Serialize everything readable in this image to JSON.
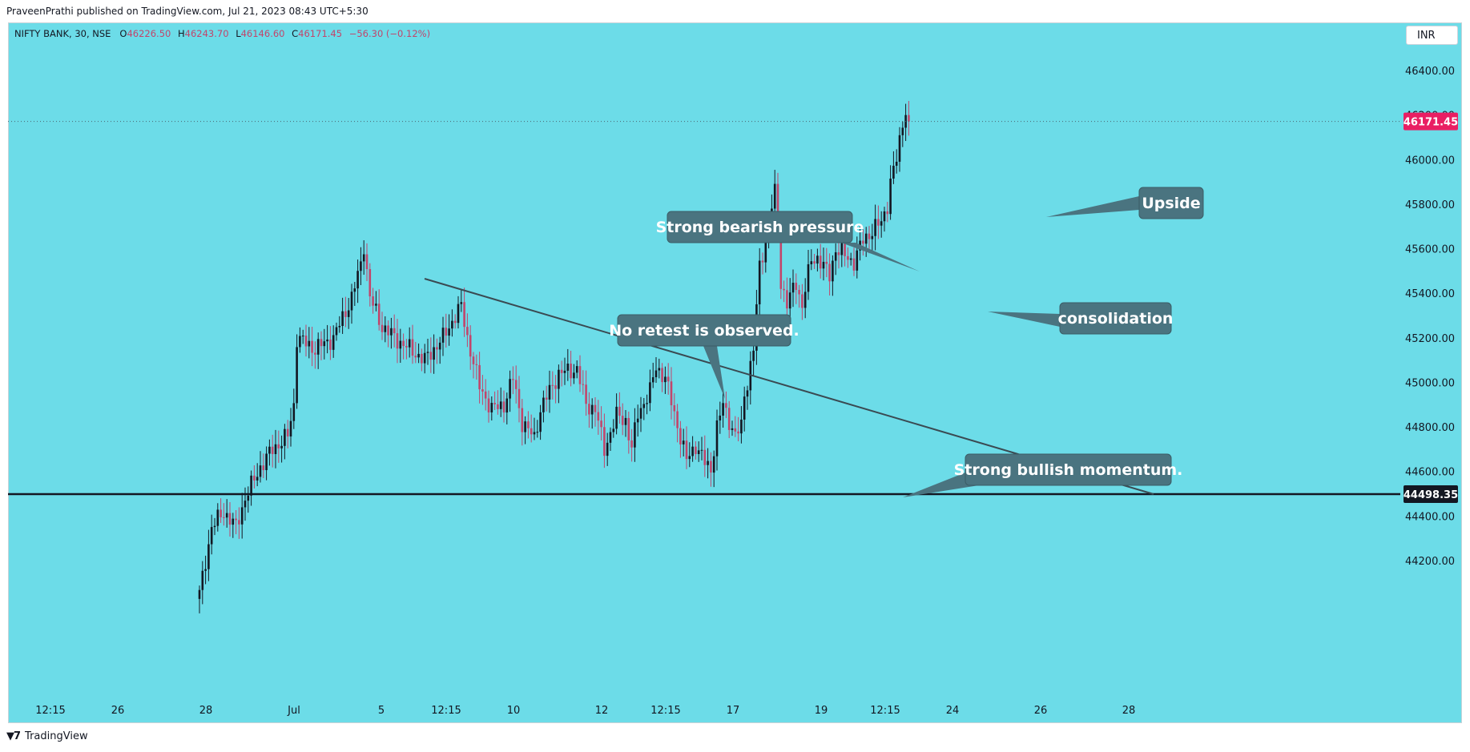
{
  "header": {
    "published_text": "PraveenPrathi published on TradingView.com, Jul 21, 2023 08:43 UTC+5:30"
  },
  "legend": {
    "symbol": "NIFTY BANK, 30, NSE",
    "open_label": "O",
    "open": "46226.50",
    "high_label": "H",
    "high": "46243.70",
    "low_label": "L",
    "low": "46146.60",
    "close_label": "C",
    "close": "46171.45",
    "change": "−56.30 (−0.12%)"
  },
  "currency": "INR",
  "footer": {
    "logo_icon": "tradingview-logo-icon",
    "brand": "TradingView"
  },
  "colors": {
    "background": "#6cdce8",
    "bull": "#131722",
    "bear": "#c2456b",
    "callout": "#4a7480",
    "last_price_tag": "#e91e63",
    "support_tag": "#131722"
  },
  "chart_data": {
    "type": "candlestick",
    "title": "NIFTY BANK, 30, NSE",
    "ylim": [
      44000,
      46600
    ],
    "y_ticks": [
      "46400.00",
      "46200.00",
      "46000.00",
      "45800.00",
      "45600.00",
      "45400.00",
      "45200.00",
      "45000.00",
      "44800.00",
      "44600.00",
      "44400.00",
      "44200.00"
    ],
    "x_ticks": [
      "12:15",
      "26",
      "28",
      "Jul",
      "5",
      "12:15",
      "10",
      "12",
      "12:15",
      "17",
      "19",
      "12:15",
      "24",
      "26",
      "28"
    ],
    "last_price": "46171.45",
    "support_level": "44498.35",
    "grid": false,
    "price_waypoints": [
      [
        0,
        44050
      ],
      [
        4,
        44350
      ],
      [
        8,
        44420
      ],
      [
        12,
        44350
      ],
      [
        15,
        44480
      ],
      [
        20,
        44620
      ],
      [
        24,
        44700
      ],
      [
        29,
        44760
      ],
      [
        31,
        44900
      ],
      [
        32,
        45200
      ],
      [
        38,
        45150
      ],
      [
        44,
        45200
      ],
      [
        50,
        45380
      ],
      [
        53,
        45530
      ],
      [
        54,
        45620
      ],
      [
        56,
        45380
      ],
      [
        60,
        45250
      ],
      [
        66,
        45180
      ],
      [
        74,
        45100
      ],
      [
        80,
        45200
      ],
      [
        84,
        45300
      ],
      [
        86,
        45340
      ],
      [
        88,
        45200
      ],
      [
        92,
        44980
      ],
      [
        96,
        44880
      ],
      [
        100,
        44900
      ],
      [
        103,
        45020
      ],
      [
        106,
        44820
      ],
      [
        110,
        44750
      ],
      [
        112,
        44880
      ],
      [
        118,
        45040
      ],
      [
        124,
        45060
      ],
      [
        127,
        44900
      ],
      [
        130,
        44880
      ],
      [
        133,
        44700
      ],
      [
        137,
        44850
      ],
      [
        140,
        44830
      ],
      [
        142,
        44700
      ],
      [
        144,
        44860
      ],
      [
        148,
        44960
      ],
      [
        150,
        45070
      ],
      [
        153,
        45020
      ],
      [
        156,
        44860
      ],
      [
        160,
        44650
      ],
      [
        163,
        44720
      ],
      [
        166,
        44640
      ],
      [
        168,
        44610
      ],
      [
        170,
        44800
      ],
      [
        172,
        44900
      ],
      [
        176,
        44760
      ],
      [
        178,
        44800
      ],
      [
        179,
        44950
      ],
      [
        180,
        45000
      ],
      [
        182,
        45150
      ],
      [
        184,
        45520
      ],
      [
        185,
        45580
      ],
      [
        187,
        45700
      ],
      [
        188,
        45790
      ],
      [
        189,
        45850
      ],
      [
        190,
        45700
      ],
      [
        191,
        45450
      ],
      [
        193,
        45350
      ],
      [
        196,
        45450
      ],
      [
        198,
        45340
      ],
      [
        199,
        45420
      ],
      [
        201,
        45550
      ],
      [
        203,
        45560
      ],
      [
        205,
        45520
      ],
      [
        207,
        45480
      ],
      [
        209,
        45600
      ],
      [
        213,
        45560
      ],
      [
        215,
        45540
      ],
      [
        218,
        45640
      ],
      [
        221,
        45680
      ],
      [
        224,
        45720
      ],
      [
        226,
        45800
      ],
      [
        227,
        45900
      ],
      [
        229,
        46000
      ],
      [
        231,
        46170
      ],
      [
        232,
        46226
      ],
      [
        233,
        46171
      ]
    ],
    "annotations": [
      {
        "text": "Strong bearish pressure"
      },
      {
        "text": "No retest is observed."
      },
      {
        "text": "Upside"
      },
      {
        "text": "consolidation"
      },
      {
        "text": "Strong bullish momentum."
      }
    ]
  }
}
